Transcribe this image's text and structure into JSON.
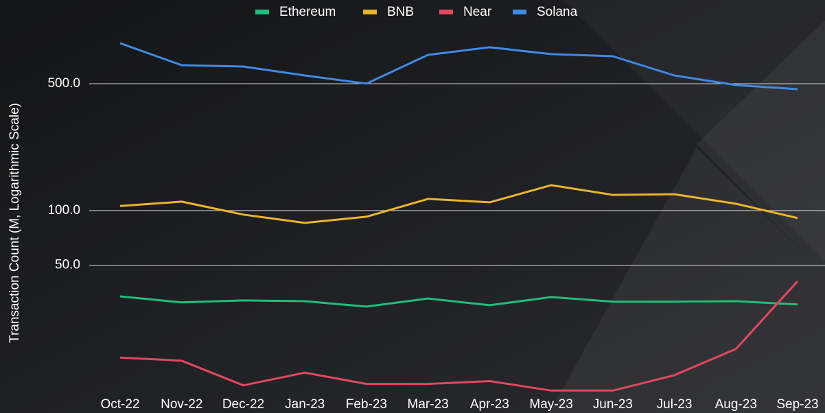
{
  "chart_data": {
    "type": "line",
    "y_label": "Transaction Count (M, Logarithmic Scale)",
    "categories": [
      "Oct-22",
      "Nov-22",
      "Dec-22",
      "Jan-23",
      "Feb-23",
      "Mar-23",
      "Apr-23",
      "May-23",
      "Jun-23",
      "Jul-23",
      "Aug-23",
      "Sep-23"
    ],
    "series": [
      {
        "name": "Ethereum",
        "color": "#1fbf7a",
        "values": [
          33.7,
          31.2,
          32,
          31.7,
          29.6,
          32.8,
          30.1,
          33.4,
          31.5,
          31.5,
          31.7,
          30.4
        ]
      },
      {
        "name": "BNB",
        "color": "#eab52d",
        "values": [
          106,
          112,
          95,
          85.5,
          92.5,
          116,
          111,
          138,
          122,
          123,
          109,
          91
        ]
      },
      {
        "name": "Near",
        "color": "#e2485f",
        "values": [
          15.5,
          14.9,
          10.9,
          12.8,
          11.1,
          11.1,
          11.5,
          10.2,
          10.2,
          12.4,
          17.3,
          40.8
        ]
      },
      {
        "name": "Solana",
        "color": "#3f8ae6",
        "values": [
          835,
          632,
          621,
          555,
          500,
          720,
          793,
          727,
          708,
          555,
          491,
          466
        ]
      }
    ],
    "log_scale": true,
    "ylim": [
      10,
      1400
    ],
    "yticks": [
      {
        "value": 50,
        "label": "50.0"
      },
      {
        "value": 100,
        "label": "100.0"
      },
      {
        "value": 500,
        "label": "500.0"
      }
    ],
    "grid": true,
    "legend": "top"
  }
}
